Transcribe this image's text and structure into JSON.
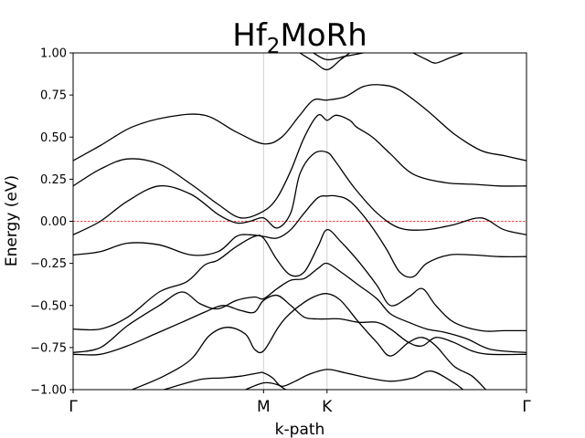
{
  "chart_data": {
    "type": "line",
    "title": "Hf",
    "title_subscript": "2",
    "title_rest": "MoRh",
    "xlabel": "k-path",
    "ylabel": "Energy (eV)",
    "ylim": [
      -1.0,
      1.0
    ],
    "yticks": [
      -1.0,
      -0.75,
      -0.5,
      -0.25,
      0.0,
      0.25,
      0.5,
      0.75,
      1.0
    ],
    "ytick_labels": [
      "−1.00",
      "−0.75",
      "−0.50",
      "−0.25",
      "0.00",
      "0.25",
      "0.50",
      "0.75",
      "1.00"
    ],
    "xlim": [
      0.0,
      1.0
    ],
    "high_symmetry_points": [
      {
        "label": "Γ",
        "x": 0.0
      },
      {
        "label": "M",
        "x": 0.42
      },
      {
        "label": "K",
        "x": 0.56
      },
      {
        "label": "Γ",
        "x": 1.0
      }
    ],
    "fermi_level": 0.0,
    "fermi_color": "#ff0000",
    "band_color": "#000000",
    "grid": false,
    "series": [
      {
        "x": [
          0.0,
          0.06,
          0.13,
          0.21,
          0.29,
          0.36,
          0.42,
          0.46,
          0.5,
          0.53,
          0.56,
          0.6,
          0.64,
          0.68,
          0.72,
          0.78,
          0.84,
          0.9,
          0.95,
          1.0
        ],
        "values": [
          0.36,
          0.45,
          0.56,
          0.62,
          0.63,
          0.53,
          0.46,
          0.5,
          0.63,
          0.72,
          0.72,
          0.74,
          0.8,
          0.81,
          0.78,
          0.66,
          0.52,
          0.42,
          0.39,
          0.36
        ]
      },
      {
        "x": [
          0.0,
          0.06,
          0.12,
          0.19,
          0.26,
          0.32,
          0.37,
          0.42,
          0.45,
          0.48,
          0.51,
          0.54,
          0.56,
          0.58,
          0.61,
          0.625,
          0.66,
          0.7,
          0.75,
          0.82,
          0.88,
          0.94,
          1.0
        ],
        "values": [
          0.21,
          0.31,
          0.37,
          0.34,
          0.22,
          0.1,
          0.02,
          0.06,
          0.14,
          0.3,
          0.5,
          0.63,
          0.6,
          0.63,
          0.6,
          0.56,
          0.5,
          0.4,
          0.28,
          0.23,
          0.22,
          0.21,
          0.21
        ]
      },
      {
        "x": [
          0.0,
          0.06,
          0.12,
          0.19,
          0.26,
          0.32,
          0.36,
          0.39,
          0.42,
          0.45,
          0.48,
          0.5,
          0.53,
          0.56,
          0.58,
          0.62,
          0.67,
          0.72,
          0.78,
          0.84,
          0.9,
          0.95,
          1.0
        ],
        "values": [
          -0.08,
          0.0,
          0.12,
          0.21,
          0.16,
          0.04,
          -0.01,
          0.0,
          0.02,
          -0.04,
          0.05,
          0.28,
          0.4,
          0.41,
          0.35,
          0.2,
          0.05,
          -0.04,
          -0.05,
          -0.02,
          0.02,
          -0.05,
          -0.08
        ]
      },
      {
        "x": [
          0.0,
          0.06,
          0.12,
          0.19,
          0.26,
          0.32,
          0.36,
          0.39,
          0.42,
          0.45,
          0.48,
          0.51,
          0.54,
          0.56,
          0.58,
          0.61,
          0.65,
          0.69,
          0.72,
          0.75,
          0.78,
          0.83,
          0.88,
          0.94,
          1.0
        ],
        "values": [
          -0.2,
          -0.18,
          -0.13,
          -0.14,
          -0.2,
          -0.18,
          -0.09,
          -0.08,
          -0.09,
          -0.1,
          -0.05,
          0.05,
          0.14,
          0.15,
          0.15,
          0.12,
          0.0,
          -0.16,
          -0.3,
          -0.33,
          -0.25,
          -0.2,
          -0.2,
          -0.21,
          -0.21
        ]
      },
      {
        "x": [
          0.0,
          0.06,
          0.12,
          0.19,
          0.25,
          0.29,
          0.32,
          0.36,
          0.4,
          0.42,
          0.45,
          0.48,
          0.51,
          0.54,
          0.56,
          0.59,
          0.63,
          0.67,
          0.7,
          0.74,
          0.77,
          0.8,
          0.84,
          0.9,
          0.95,
          1.0
        ],
        "values": [
          -0.64,
          -0.64,
          -0.57,
          -0.42,
          -0.36,
          -0.26,
          -0.23,
          -0.15,
          -0.09,
          -0.1,
          -0.23,
          -0.32,
          -0.3,
          -0.15,
          -0.05,
          -0.12,
          -0.24,
          -0.38,
          -0.5,
          -0.45,
          -0.4,
          -0.5,
          -0.6,
          -0.65,
          -0.65,
          -0.65
        ]
      },
      {
        "x": [
          0.0,
          0.06,
          0.12,
          0.19,
          0.24,
          0.28,
          0.32,
          0.36,
          0.4,
          0.42,
          0.45,
          0.48,
          0.51,
          0.54,
          0.56,
          0.59,
          0.63,
          0.67,
          0.7,
          0.74,
          0.78,
          0.82,
          0.87,
          0.92,
          1.0
        ],
        "values": [
          -0.78,
          -0.75,
          -0.62,
          -0.5,
          -0.42,
          -0.49,
          -0.52,
          -0.47,
          -0.45,
          -0.46,
          -0.4,
          -0.35,
          -0.34,
          -0.28,
          -0.25,
          -0.3,
          -0.38,
          -0.46,
          -0.55,
          -0.6,
          -0.64,
          -0.66,
          -0.7,
          -0.76,
          -0.78
        ]
      },
      {
        "x": [
          0.0,
          0.06,
          0.12,
          0.18,
          0.24,
          0.29,
          0.33,
          0.37,
          0.4,
          0.42,
          0.45,
          0.48,
          0.51,
          0.54,
          0.56,
          0.59,
          0.63,
          0.67,
          0.7,
          0.74,
          0.77,
          0.8,
          0.84,
          0.88,
          0.92,
          1.0
        ],
        "values": [
          -0.79,
          -0.79,
          -0.74,
          -0.67,
          -0.6,
          -0.54,
          -0.5,
          -0.53,
          -0.54,
          -0.47,
          -0.44,
          -0.5,
          -0.57,
          -0.58,
          -0.58,
          -0.58,
          -0.6,
          -0.6,
          -0.64,
          -0.72,
          -0.74,
          -0.69,
          -0.72,
          -0.77,
          -0.79,
          -0.79
        ]
      },
      {
        "x": [
          0.13,
          0.2,
          0.26,
          0.3,
          0.34,
          0.38,
          0.4,
          0.42,
          0.45,
          0.47,
          0.5,
          0.53,
          0.56,
          0.59,
          0.63,
          0.67,
          0.7,
          0.74,
          0.77,
          0.8,
          0.84,
          0.88,
          0.91
        ],
        "values": [
          -1.0,
          -0.92,
          -0.82,
          -0.68,
          -0.63,
          -0.67,
          -0.76,
          -0.77,
          -0.64,
          -0.57,
          -0.5,
          -0.45,
          -0.43,
          -0.47,
          -0.6,
          -0.72,
          -0.8,
          -0.72,
          -0.69,
          -0.74,
          -0.86,
          -0.92,
          -1.0
        ]
      },
      {
        "x": [
          0.2,
          0.28,
          0.33,
          0.37,
          0.41,
          0.42,
          0.44,
          0.46,
          0.49,
          0.52,
          0.56,
          0.6,
          0.65,
          0.7,
          0.75,
          0.79,
          0.84,
          0.86
        ],
        "values": [
          -1.0,
          -0.94,
          -0.93,
          -0.92,
          -0.9,
          -0.9,
          -0.93,
          -0.98,
          -0.95,
          -0.91,
          -0.88,
          -0.9,
          -0.93,
          -0.95,
          -0.93,
          -0.89,
          -0.96,
          -1.0
        ]
      },
      {
        "x": [
          0.38,
          0.42,
          0.45,
          0.47,
          0.49
        ],
        "values": [
          -1.0,
          -0.96,
          -0.97,
          -1.0,
          -1.0
        ]
      },
      {
        "x": [
          0.5,
          0.53,
          0.56,
          0.59,
          0.61
        ],
        "values": [
          1.0,
          0.95,
          0.9,
          0.96,
          1.0
        ]
      },
      {
        "x": [
          0.53,
          0.56,
          0.6,
          0.64
        ],
        "values": [
          1.0,
          0.96,
          0.98,
          1.0
        ]
      },
      {
        "x": [
          0.75,
          0.78,
          0.8,
          0.83,
          0.86
        ],
        "values": [
          1.0,
          0.96,
          0.94,
          0.97,
          1.0
        ]
      }
    ]
  }
}
